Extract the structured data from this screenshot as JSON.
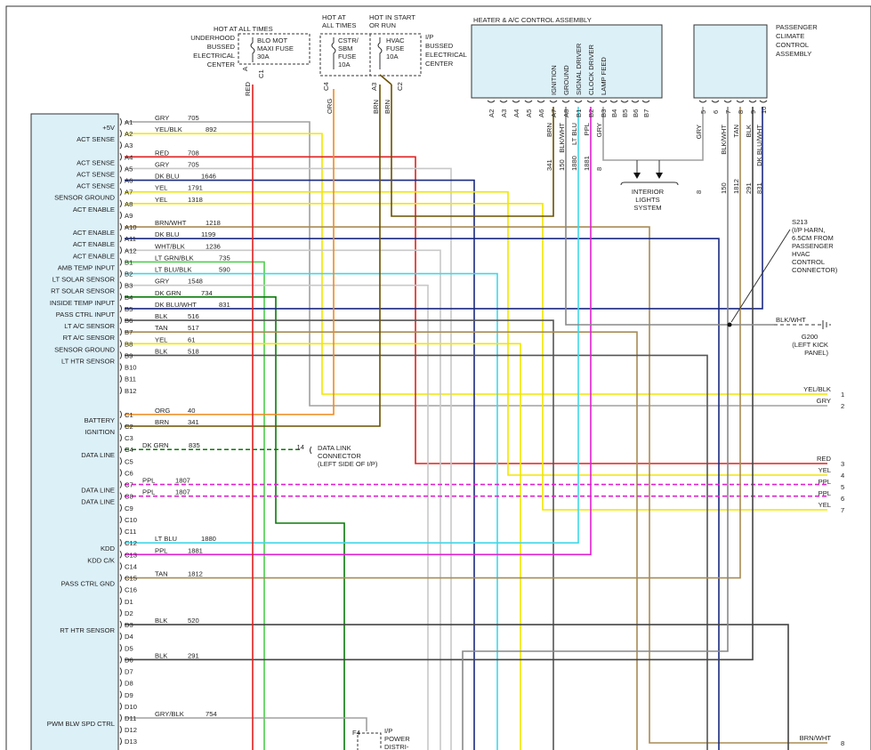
{
  "module": {
    "pins": [
      {
        "pin": "A1",
        "function": "+5V",
        "wire": "GRY",
        "circuit": "705"
      },
      {
        "pin": "A2",
        "function": "ACT SENSE",
        "wire": "YEL/BLK",
        "circuit": "892"
      },
      {
        "pin": "A3"
      },
      {
        "pin": "A4",
        "function": "ACT SENSE",
        "wire": "RED",
        "circuit": "708"
      },
      {
        "pin": "A5",
        "function": "ACT SENSE",
        "wire": "GRY",
        "circuit": "705"
      },
      {
        "pin": "A6",
        "function": "ACT SENSE",
        "wire": "DK BLU",
        "circuit": "1646"
      },
      {
        "pin": "A7",
        "function": "SENSOR GROUND",
        "wire": "YEL",
        "circuit": "1791"
      },
      {
        "pin": "A8",
        "function": "ACT ENABLE",
        "wire": "YEL",
        "circuit": "1318"
      },
      {
        "pin": "A9"
      },
      {
        "pin": "A10",
        "function": "ACT ENABLE",
        "wire": "BRN/WHT",
        "circuit": "1218"
      },
      {
        "pin": "A11",
        "function": "ACT ENABLE",
        "wire": "DK BLU",
        "circuit": "1199"
      },
      {
        "pin": "A12",
        "function": "ACT ENABLE",
        "wire": "WHT/BLK",
        "circuit": "1236"
      },
      {
        "pin": "B1",
        "function": "AMB TEMP INPUT",
        "wire": "LT GRN/BLK",
        "circuit": "735"
      },
      {
        "pin": "B2",
        "function": "LT SOLAR SENSOR",
        "wire": "LT BLU/BLK",
        "circuit": "590"
      },
      {
        "pin": "B3",
        "function": "RT SOLAR SENSOR",
        "wire": "GRY",
        "circuit": "1548"
      },
      {
        "pin": "B4",
        "function": "INSIDE TEMP INPUT",
        "wire": "DK GRN",
        "circuit": "734"
      },
      {
        "pin": "B5",
        "function": "PASS CTRL INPUT",
        "wire": "DK BLU/WHT",
        "circuit": "831"
      },
      {
        "pin": "B6",
        "function": "LT A/C SENSOR",
        "wire": "BLK",
        "circuit": "516"
      },
      {
        "pin": "B7",
        "function": "RT A/C SENSOR",
        "wire": "TAN",
        "circuit": "517"
      },
      {
        "pin": "B8",
        "function": "SENSOR GROUND",
        "wire": "YEL",
        "circuit": "61"
      },
      {
        "pin": "B9",
        "function": "LT HTR SENSOR",
        "wire": "BLK",
        "circuit": "518"
      },
      {
        "pin": "B10"
      },
      {
        "pin": "B11"
      },
      {
        "pin": "B12"
      },
      {
        "pin": "C1",
        "function": "BATTERY",
        "wire": "ORG",
        "circuit": "40"
      },
      {
        "pin": "C2",
        "function": "IGNITION",
        "wire": "BRN",
        "circuit": "341"
      },
      {
        "pin": "C3"
      },
      {
        "pin": "C4",
        "function": "DATA LINE",
        "wire": "DK GRN",
        "circuit": "835"
      },
      {
        "pin": "C5"
      },
      {
        "pin": "C6"
      },
      {
        "pin": "C7",
        "function": "DATA LINE",
        "wire": "PPL",
        "circuit": "1807"
      },
      {
        "pin": "C8",
        "function": "DATA LINE",
        "wire": "PPL",
        "circuit": "1807"
      },
      {
        "pin": "C9"
      },
      {
        "pin": "C10"
      },
      {
        "pin": "C11"
      },
      {
        "pin": "C12",
        "function": "KDD",
        "wire": "LT BLU",
        "circuit": "1880"
      },
      {
        "pin": "C13",
        "function": "KDD C/K",
        "wire": "PPL",
        "circuit": "1881"
      },
      {
        "pin": "C14"
      },
      {
        "pin": "C15",
        "function": "PASS CTRL GND",
        "wire": "TAN",
        "circuit": "1812"
      },
      {
        "pin": "C16"
      },
      {
        "pin": "D1"
      },
      {
        "pin": "D2"
      },
      {
        "pin": "D3",
        "function": "RT HTR SENSOR",
        "wire": "BLK",
        "circuit": "520"
      },
      {
        "pin": "D4"
      },
      {
        "pin": "D5"
      },
      {
        "pin": "D6",
        "wire": "BLK",
        "circuit": "291"
      },
      {
        "pin": "D7"
      },
      {
        "pin": "D8"
      },
      {
        "pin": "D9"
      },
      {
        "pin": "D10"
      },
      {
        "pin": "D11",
        "function": "PWM BLW SPD CTRL",
        "wire": "GRY/BLK",
        "circuit": "754"
      },
      {
        "pin": "D12"
      },
      {
        "pin": "D13"
      }
    ]
  },
  "underhood_fuse": {
    "heading": "HOT AT ALL TIMES",
    "location": [
      "UNDERHOOD",
      "BUSSED",
      "ELECTRICAL",
      "CENTER"
    ],
    "fuse": [
      "BLO MOT",
      "MAXI FUSE",
      "30A"
    ],
    "pins": [
      "A",
      "C1"
    ],
    "wire": "RED"
  },
  "ip_fuses": {
    "headings": [
      [
        "HOT AT",
        "ALL TIMES"
      ],
      [
        "HOT IN START",
        "OR RUN"
      ]
    ],
    "fuse1": [
      "CSTR/",
      "SBM",
      "FUSE",
      "10A"
    ],
    "fuse2": [
      "HVAC",
      "FUSE",
      "10A"
    ],
    "location": [
      "I/P",
      "BUSSED",
      "ELECTRICAL",
      "CENTER"
    ],
    "pins": [
      "C4",
      "A3",
      "C2"
    ],
    "wires": [
      "ORG",
      "BRN",
      "BRN"
    ]
  },
  "heater_control": {
    "title": "HEATER & A/C CONTROL ASSEMBLY",
    "pins": [
      {
        "pin": "A2"
      },
      {
        "pin": "A3"
      },
      {
        "pin": "A4"
      },
      {
        "pin": "A5"
      },
      {
        "pin": "A6"
      },
      {
        "pin": "A7",
        "function": "IGNITION",
        "circuit": "341",
        "wire": "BRN"
      },
      {
        "pin": "A8",
        "function": "GROUND",
        "circuit": "150",
        "wire": "BLK/WHT"
      },
      {
        "pin": "B1",
        "function": "SIGNAL DRIVER",
        "circuit": "1880",
        "wire": "LT BLU"
      },
      {
        "pin": "B2",
        "function": "CLOCK DRIVER",
        "circuit": "1881",
        "wire": "PPL"
      },
      {
        "pin": "B3",
        "function": "LAMP FEED",
        "circuit": "8",
        "wire": "GRY"
      },
      {
        "pin": "B4"
      },
      {
        "pin": "B5"
      },
      {
        "pin": "B6"
      },
      {
        "pin": "B7"
      }
    ]
  },
  "passenger_control": {
    "title": [
      "PASSENGER",
      "CLIMATE",
      "CONTROL",
      "ASSEMBLY"
    ],
    "pins": [
      {
        "pin": "5",
        "circuit": "8",
        "wire": "GRY"
      },
      {
        "pin": "6"
      },
      {
        "pin": "7",
        "circuit": "150",
        "wire": "BLK/WHT"
      },
      {
        "pin": "8",
        "circuit": "1812",
        "wire": "TAN"
      },
      {
        "pin": "9",
        "circuit": "291",
        "wire": "BLK"
      },
      {
        "pin": "10",
        "circuit": "831",
        "wire": "DK BLU/WHT"
      }
    ]
  },
  "interior_lights": [
    "INTERIOR",
    "LIGHTS",
    "SYSTEM"
  ],
  "splice": {
    "id": "S213",
    "note": [
      "(I/P HARN,",
      "6.5CM FROM",
      "PASSENGER",
      "HVAC",
      "CONTROL",
      "CONNECTOR)"
    ],
    "wire": "BLK/WHT"
  },
  "ground": {
    "id": "G200",
    "note": [
      "(LEFT KICK",
      "PANEL)"
    ]
  },
  "data_link": {
    "pin": "14",
    "label": [
      "DATA LINK",
      "CONNECTOR",
      "(LEFT SIDE OF I/P)"
    ]
  },
  "terminals": [
    {
      "wire": "YEL/BLK",
      "number": "1"
    },
    {
      "wire": "GRY",
      "number": "2"
    },
    {
      "wire": "RED",
      "number": "3"
    },
    {
      "wire": "YEL",
      "number": "4"
    },
    {
      "wire": "PPL",
      "number": "5"
    },
    {
      "wire": "PPL",
      "number": "6"
    },
    {
      "wire": "YEL",
      "number": "7"
    },
    {
      "wire": "BRN/WHT",
      "number": "8"
    }
  ],
  "ip_power": {
    "pin": "F4",
    "label": [
      "I/P",
      "POWER",
      "DISTRI-"
    ]
  }
}
